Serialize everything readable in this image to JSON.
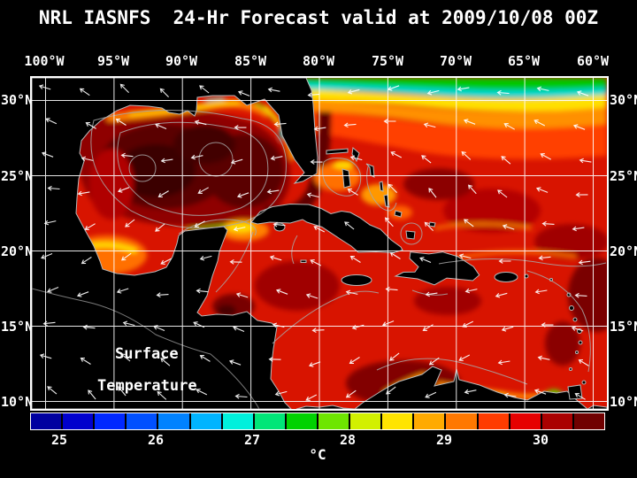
{
  "title": "NRL IASNFS  24-Hr Forecast valid at 2009/10/08 00Z",
  "map": {
    "lon_labels": [
      "100°W",
      "95°W",
      "90°W",
      "85°W",
      "80°W",
      "75°W",
      "70°W",
      "65°W",
      "60°W"
    ],
    "lat_labels": [
      "30°N",
      "25°N",
      "20°N",
      "15°N",
      "10°N"
    ],
    "overlay_label_line1": "Surface",
    "overlay_label_line2": "Temperature"
  },
  "colorbar": {
    "ticks": [
      "25",
      "26",
      "27",
      "28",
      "29",
      "30"
    ],
    "unit": "°C",
    "colors": [
      "#0000a0",
      "#0000cd",
      "#0028ff",
      "#0050ff",
      "#0082ff",
      "#00b4ff",
      "#00f0dc",
      "#00e678",
      "#00d200",
      "#6ee600",
      "#d2f000",
      "#ffe400",
      "#ffaa00",
      "#ff7800",
      "#ff3c00",
      "#e60000",
      "#aa0000",
      "#700000"
    ]
  }
}
